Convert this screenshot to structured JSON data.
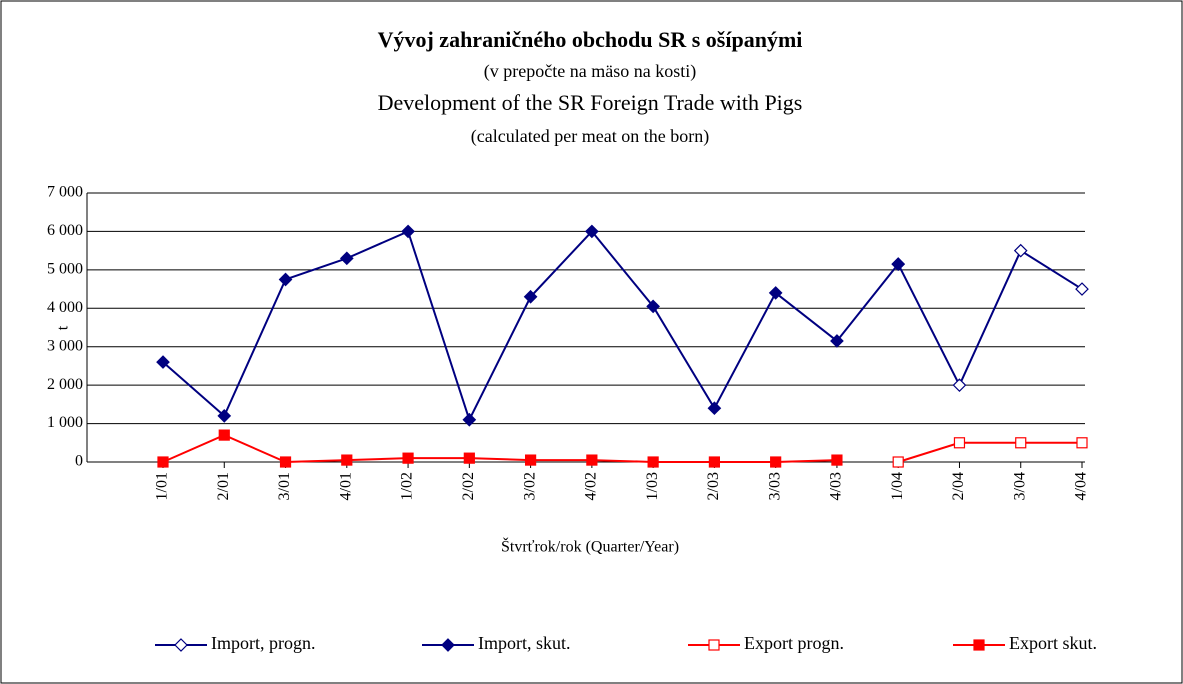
{
  "chart_data": {
    "type": "line",
    "title": "Vývoj zahraničného obchodu SR s ošípanými",
    "subtitle": "(v prepočte na mäso na kosti)",
    "title_en": "Development of the SR Foreign Trade with Pigs",
    "subtitle_en": "(calculated per meat on the born)",
    "x_label": "Štvrťrok/rok (Quarter/Year)",
    "y_label": "t",
    "categories": [
      "1/01",
      "2/01",
      "3/01",
      "4/01",
      "1/02",
      "2/02",
      "3/02",
      "4/02",
      "1/03",
      "2/03",
      "3/03",
      "4/03",
      "1/04",
      "2/04",
      "3/04",
      "4/04"
    ],
    "series": [
      {
        "name": "Import, progn.",
        "color": "#000080",
        "marker": "diamond-open",
        "values": [
          null,
          null,
          null,
          null,
          null,
          null,
          null,
          null,
          null,
          null,
          null,
          null,
          5150,
          2000,
          5500,
          4500
        ]
      },
      {
        "name": "Import, skut.",
        "color": "#000080",
        "marker": "diamond",
        "values": [
          2600,
          1200,
          4750,
          5300,
          6000,
          1100,
          4300,
          6000,
          4050,
          1400,
          4400,
          3150,
          5150,
          null,
          null,
          null
        ]
      },
      {
        "name": "Export progn.",
        "color": "#ff0000",
        "marker": "square-open",
        "values": [
          null,
          null,
          null,
          null,
          null,
          null,
          null,
          null,
          null,
          null,
          null,
          null,
          0,
          500,
          500,
          500
        ]
      },
      {
        "name": "Export skut.",
        "color": "#ff0000",
        "marker": "square",
        "values": [
          0,
          700,
          0,
          50,
          100,
          100,
          50,
          50,
          0,
          0,
          0,
          50,
          null,
          null,
          null,
          null
        ]
      }
    ],
    "ylim": [
      0,
      7000
    ],
    "yticks": [
      {
        "value": 0,
        "label": "0"
      },
      {
        "value": 1000,
        "label": "1 000"
      },
      {
        "value": 2000,
        "label": "2 000"
      },
      {
        "value": 3000,
        "label": "3 000"
      },
      {
        "value": 4000,
        "label": "4 000"
      },
      {
        "value": 5000,
        "label": "5 000"
      },
      {
        "value": 6000,
        "label": "6 000"
      },
      {
        "value": 7000,
        "label": "7 000"
      }
    ],
    "grid": true,
    "legend": "bottom"
  }
}
